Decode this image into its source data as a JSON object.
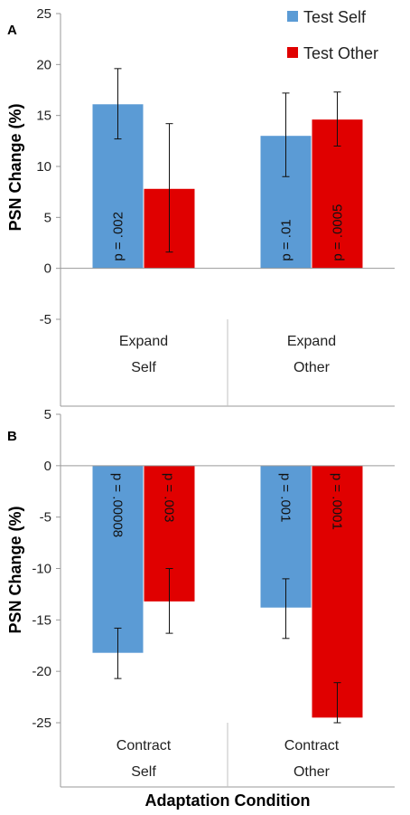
{
  "chart_data": [
    {
      "type": "bar",
      "panel_label": "A",
      "ylabel": "PSN Change (%)",
      "ylim": [
        -5,
        25
      ],
      "yticks": [
        "25",
        "20",
        "15",
        "10",
        "5",
        "0",
        "-5"
      ],
      "category_lines": [
        {
          "line1": "Expand",
          "line2": "Self"
        },
        {
          "line1": "Expand",
          "line2": "Other"
        }
      ],
      "series": [
        {
          "name": "Test Self",
          "color": "#5B9BD5",
          "values": [
            16.1,
            13.0
          ],
          "error_low": [
            12.7,
            9.0
          ],
          "error_high": [
            19.6,
            17.2
          ],
          "p_labels": [
            "p = .002",
            "p = .01"
          ]
        },
        {
          "name": "Test Other",
          "color": "#E00000",
          "values": [
            7.8,
            14.6
          ],
          "error_low": [
            1.6,
            12.0
          ],
          "error_high": [
            14.2,
            17.3
          ],
          "p_labels": [
            "",
            "p = .0005"
          ]
        }
      ],
      "legend_position": "top-right"
    },
    {
      "type": "bar",
      "panel_label": "B",
      "ylabel": "PSN Change (%)",
      "xlabel": "Adaptation Condition",
      "ylim": [
        -25,
        5
      ],
      "yticks": [
        "5",
        "0",
        "-5",
        "-10",
        "-15",
        "-20",
        "-25"
      ],
      "category_lines": [
        {
          "line1": "Contract",
          "line2": "Self"
        },
        {
          "line1": "Contract",
          "line2": "Other"
        }
      ],
      "series": [
        {
          "name": "Test Self",
          "color": "#5B9BD5",
          "values": [
            -18.2,
            -13.8
          ],
          "error_low": [
            -20.7,
            -16.8
          ],
          "error_high": [
            -15.8,
            -11.0
          ],
          "p_labels": [
            "p = .00008",
            "p = .001"
          ]
        },
        {
          "name": "Test Other",
          "color": "#E00000",
          "values": [
            -13.2,
            -24.5
          ],
          "error_low": [
            -16.3,
            -25.0
          ],
          "error_high": [
            -10.0,
            -21.1
          ],
          "p_labels": [
            "p = .003",
            "p = .0001"
          ]
        }
      ]
    }
  ]
}
